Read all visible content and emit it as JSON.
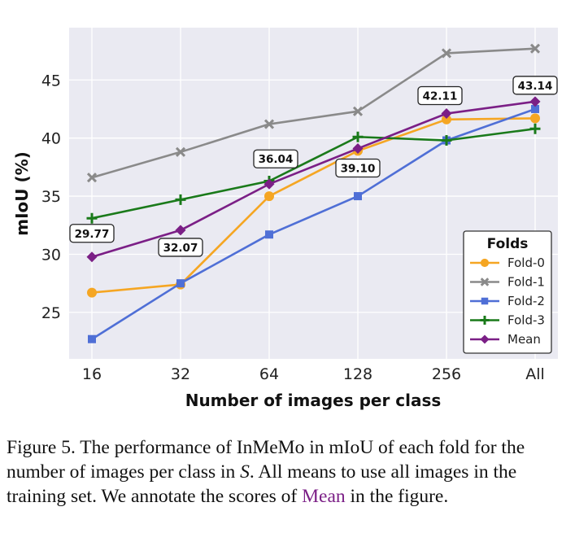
{
  "chart_data": {
    "type": "line",
    "xlabel": "Number of images per class",
    "ylabel": "mIoU (%)",
    "categories": [
      "16",
      "32",
      "64",
      "128",
      "256",
      "All"
    ],
    "ylim": [
      21,
      49.5
    ],
    "yticks": [
      25,
      30,
      35,
      40,
      45
    ],
    "grid": true,
    "legend": {
      "title": "Folds",
      "placement": "lower-right"
    },
    "series": [
      {
        "name": "Fold-0",
        "values": [
          26.7,
          27.4,
          35.0,
          38.9,
          41.6,
          41.7
        ],
        "color": "#f5a623",
        "marker": "circle"
      },
      {
        "name": "Fold-1",
        "values": [
          36.6,
          38.8,
          41.2,
          42.3,
          47.3,
          47.7
        ],
        "color": "#8a8a8a",
        "marker": "x"
      },
      {
        "name": "Fold-2",
        "values": [
          22.7,
          27.5,
          31.7,
          35.0,
          39.8,
          42.5
        ],
        "color": "#4f6fd6",
        "marker": "square"
      },
      {
        "name": "Fold-3",
        "values": [
          33.1,
          34.7,
          36.3,
          40.1,
          39.8,
          40.8
        ],
        "color": "#1a7a1a",
        "marker": "plus"
      },
      {
        "name": "Mean",
        "values": [
          29.77,
          32.07,
          36.04,
          39.1,
          42.11,
          43.14
        ],
        "color": "#7b1f86",
        "marker": "diamond"
      }
    ],
    "annotations": [
      "29.77",
      "32.07",
      "36.04",
      "39.10",
      "42.11",
      "43.14"
    ]
  },
  "caption": {
    "prefix": "Figure 5. The performance of InMeMo in mIoU of each fold for the number of images per class in ",
    "math_symbol": "S",
    "middle": ". All means to use all images in the training set. We annotate the scores of ",
    "highlight": "Mean",
    "suffix": " in the figure."
  }
}
